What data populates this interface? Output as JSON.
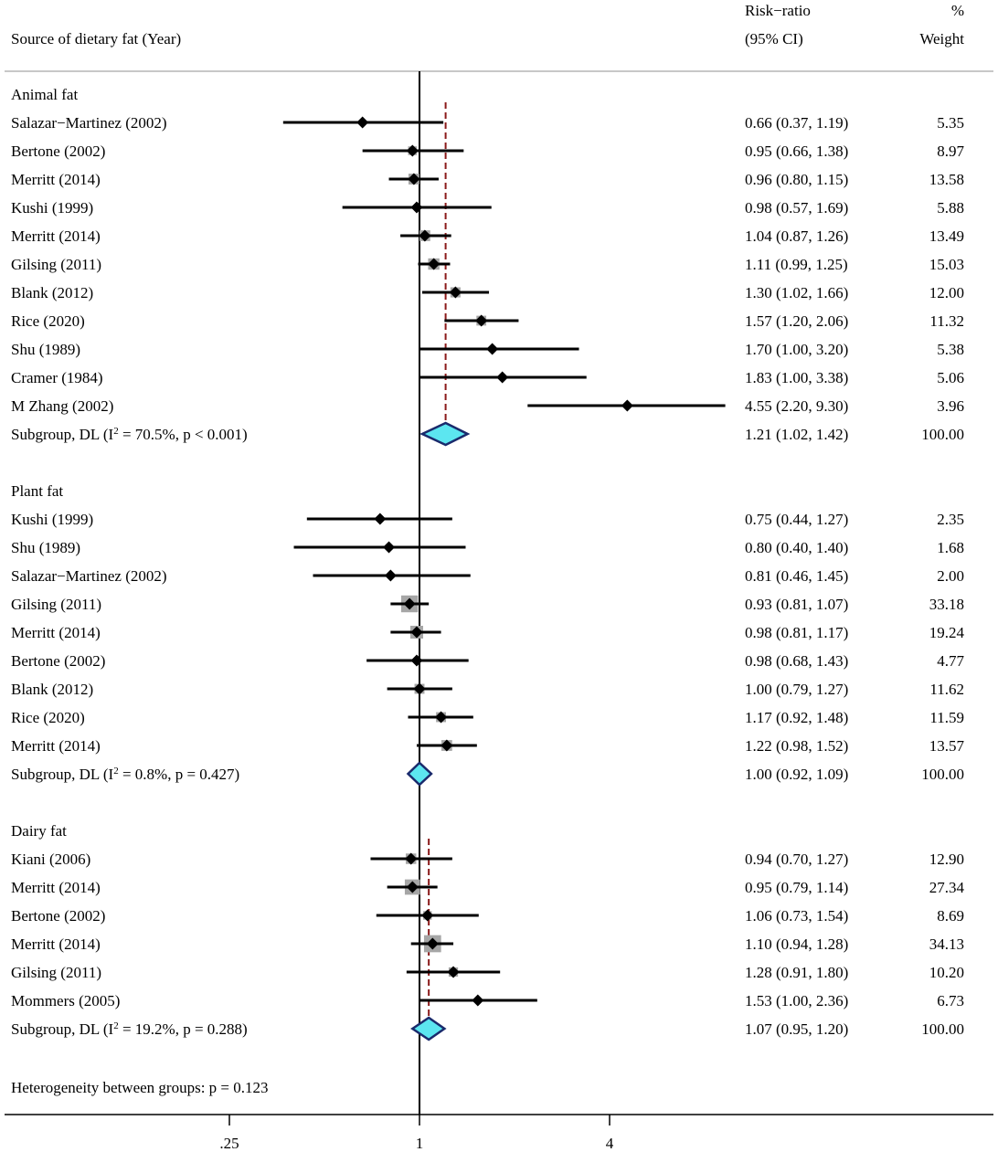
{
  "chart_data": {
    "type": "forest",
    "headers": {
      "study": "Source of dietary fat (Year)",
      "rr_line1": "Risk−ratio",
      "rr_line2": "(95% CI)",
      "w_line1": "%",
      "w_line2": "Weight"
    },
    "scale": "log2",
    "null_value": 1,
    "x_ticks": [
      {
        "value": 0.25,
        "label": ".25"
      },
      {
        "value": 1,
        "label": "1"
      },
      {
        "value": 4,
        "label": "4"
      }
    ],
    "groups": [
      {
        "name": "Animal fat",
        "studies": [
          {
            "label": "Salazar−Martinez (2002)",
            "rr": 0.66,
            "lo": 0.37,
            "hi": 1.19,
            "ci_text": "0.66 (0.37, 1.19)",
            "weight": "5.35"
          },
          {
            "label": "Bertone (2002)",
            "rr": 0.95,
            "lo": 0.66,
            "hi": 1.38,
            "ci_text": "0.95 (0.66, 1.38)",
            "weight": "8.97"
          },
          {
            "label": "Merritt (2014)",
            "rr": 0.96,
            "lo": 0.8,
            "hi": 1.15,
            "ci_text": "0.96 (0.80, 1.15)",
            "weight": "13.58"
          },
          {
            "label": "Kushi (1999)",
            "rr": 0.98,
            "lo": 0.57,
            "hi": 1.69,
            "ci_text": "0.98 (0.57, 1.69)",
            "weight": "5.88"
          },
          {
            "label": "Merritt (2014)",
            "rr": 1.04,
            "lo": 0.87,
            "hi": 1.26,
            "ci_text": "1.04 (0.87, 1.26)",
            "weight": "13.49"
          },
          {
            "label": "Gilsing (2011)",
            "rr": 1.11,
            "lo": 0.99,
            "hi": 1.25,
            "ci_text": "1.11 (0.99, 1.25)",
            "weight": "15.03"
          },
          {
            "label": "Blank (2012)",
            "rr": 1.3,
            "lo": 1.02,
            "hi": 1.66,
            "ci_text": "1.30 (1.02, 1.66)",
            "weight": "12.00"
          },
          {
            "label": "Rice (2020)",
            "rr": 1.57,
            "lo": 1.2,
            "hi": 2.06,
            "ci_text": "1.57 (1.20, 2.06)",
            "weight": "11.32"
          },
          {
            "label": "Shu (1989)",
            "rr": 1.7,
            "lo": 1.0,
            "hi": 3.2,
            "ci_text": "1.70 (1.00, 3.20)",
            "weight": "5.38"
          },
          {
            "label": "Cramer (1984)",
            "rr": 1.83,
            "lo": 1.0,
            "hi": 3.38,
            "ci_text": "1.83 (1.00, 3.38)",
            "weight": "5.06"
          },
          {
            "label": "M Zhang (2002)",
            "rr": 4.55,
            "lo": 2.2,
            "hi": 9.3,
            "ci_text": "4.55 (2.20, 9.30)",
            "weight": "3.96"
          }
        ],
        "subgroup": {
          "prefix": "Subgroup, DL (I",
          "sup": "2",
          "suffix": " = 70.5%, p < 0.001)",
          "rr": 1.21,
          "lo": 1.02,
          "hi": 1.42,
          "ci_text": "1.21 (1.02, 1.42)",
          "weight": "100.00"
        }
      },
      {
        "name": "Plant fat",
        "studies": [
          {
            "label": "Kushi (1999)",
            "rr": 0.75,
            "lo": 0.44,
            "hi": 1.27,
            "ci_text": "0.75 (0.44, 1.27)",
            "weight": "2.35"
          },
          {
            "label": "Shu (1989)",
            "rr": 0.8,
            "lo": 0.4,
            "hi": 1.4,
            "ci_text": "0.80 (0.40, 1.40)",
            "weight": "1.68"
          },
          {
            "label": "Salazar−Martinez (2002)",
            "rr": 0.81,
            "lo": 0.46,
            "hi": 1.45,
            "ci_text": "0.81 (0.46, 1.45)",
            "weight": "2.00"
          },
          {
            "label": "Gilsing (2011)",
            "rr": 0.93,
            "lo": 0.81,
            "hi": 1.07,
            "ci_text": "0.93 (0.81, 1.07)",
            "weight": "33.18"
          },
          {
            "label": "Merritt (2014)",
            "rr": 0.98,
            "lo": 0.81,
            "hi": 1.17,
            "ci_text": "0.98 (0.81, 1.17)",
            "weight": "19.24"
          },
          {
            "label": "Bertone (2002)",
            "rr": 0.98,
            "lo": 0.68,
            "hi": 1.43,
            "ci_text": "0.98 (0.68, 1.43)",
            "weight": "4.77"
          },
          {
            "label": "Blank (2012)",
            "rr": 1.0,
            "lo": 0.79,
            "hi": 1.27,
            "ci_text": "1.00 (0.79, 1.27)",
            "weight": "11.62"
          },
          {
            "label": "Rice (2020)",
            "rr": 1.17,
            "lo": 0.92,
            "hi": 1.48,
            "ci_text": "1.17 (0.92, 1.48)",
            "weight": "11.59"
          },
          {
            "label": "Merritt (2014)",
            "rr": 1.22,
            "lo": 0.98,
            "hi": 1.52,
            "ci_text": "1.22 (0.98, 1.52)",
            "weight": "13.57"
          }
        ],
        "subgroup": {
          "prefix": "Subgroup, DL (I",
          "sup": "2",
          "suffix": " = 0.8%, p = 0.427)",
          "rr": 1.0,
          "lo": 0.92,
          "hi": 1.09,
          "ci_text": "1.00 (0.92, 1.09)",
          "weight": "100.00"
        }
      },
      {
        "name": "Dairy fat",
        "studies": [
          {
            "label": "Kiani (2006)",
            "rr": 0.94,
            "lo": 0.7,
            "hi": 1.27,
            "ci_text": "0.94 (0.70, 1.27)",
            "weight": "12.90"
          },
          {
            "label": "Merritt (2014)",
            "rr": 0.95,
            "lo": 0.79,
            "hi": 1.14,
            "ci_text": "0.95 (0.79, 1.14)",
            "weight": "27.34"
          },
          {
            "label": "Bertone (2002)",
            "rr": 1.06,
            "lo": 0.73,
            "hi": 1.54,
            "ci_text": "1.06 (0.73, 1.54)",
            "weight": "8.69"
          },
          {
            "label": "Merritt (2014)",
            "rr": 1.1,
            "lo": 0.94,
            "hi": 1.28,
            "ci_text": "1.10 (0.94, 1.28)",
            "weight": "34.13"
          },
          {
            "label": "Gilsing (2011)",
            "rr": 1.28,
            "lo": 0.91,
            "hi": 1.8,
            "ci_text": "1.28 (0.91, 1.80)",
            "weight": "10.20"
          },
          {
            "label": "Mommers (2005)",
            "rr": 1.53,
            "lo": 1.0,
            "hi": 2.36,
            "ci_text": "1.53 (1.00, 2.36)",
            "weight": "6.73"
          }
        ],
        "subgroup": {
          "prefix": "Subgroup, DL (I",
          "sup": "2",
          "suffix": " = 19.2%, p = 0.288)",
          "rr": 1.07,
          "lo": 0.95,
          "hi": 1.2,
          "ci_text": "1.07 (0.95, 1.20)",
          "weight": "100.00"
        }
      }
    ],
    "footer": "Heterogeneity between groups: p = 0.123",
    "colors": {
      "marker": "#000000",
      "weight_box": "#a6a6a6",
      "summary_fill": "#5ce6f0",
      "summary_stroke": "#1a2a6c",
      "overall_line": "#8b1a1a",
      "rule": "#c8c8c8"
    }
  }
}
